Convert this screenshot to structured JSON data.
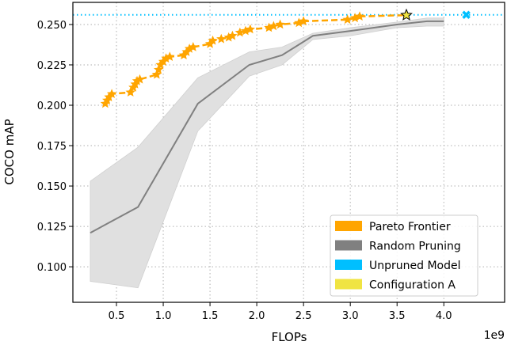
{
  "chart_data": {
    "type": "line",
    "title": "",
    "xlabel": "FLOPs",
    "ylabel": "COCO mAP",
    "x_multiplier_label": "1e9",
    "xlim": [
      0.034,
      4.65
    ],
    "ylim": [
      0.078,
      0.2637
    ],
    "grid": true,
    "legend_placement": "lower-right",
    "x_ticks": [
      0.5,
      1.0,
      1.5,
      2.0,
      2.5,
      3.0,
      3.5,
      4.0
    ],
    "x_tick_labels": [
      "0.5",
      "1.0",
      "1.5",
      "2.0",
      "2.5",
      "3.0",
      "3.5",
      "4.0"
    ],
    "y_ticks": [
      0.1,
      0.125,
      0.15,
      0.175,
      0.2,
      0.225,
      0.25
    ],
    "y_tick_labels": [
      "0.100",
      "0.125",
      "0.150",
      "0.175",
      "0.200",
      "0.225",
      "0.250"
    ],
    "legend": [
      {
        "label": "Pareto Frontier",
        "color": "#ffa500"
      },
      {
        "label": "Random Pruning",
        "color": "#808080"
      },
      {
        "label": "Unpruned Model",
        "color": "#00bfff"
      },
      {
        "label": "Configuration A",
        "color": "#f0e442"
      }
    ],
    "series": [
      {
        "name": "Pareto Frontier",
        "color": "#ffa500",
        "style": "dashed-star-markers",
        "x": [
          0.38,
          0.4,
          0.42,
          0.45,
          0.65,
          0.68,
          0.7,
          0.72,
          0.75,
          0.93,
          0.95,
          0.97,
          1.0,
          1.03,
          1.07,
          1.22,
          1.25,
          1.28,
          1.32,
          1.5,
          1.53,
          1.62,
          1.7,
          1.74,
          1.82,
          1.88,
          1.93,
          2.13,
          2.18,
          2.25,
          2.45,
          2.5,
          2.97,
          3.05,
          3.1,
          3.6
        ],
        "y": [
          0.201,
          0.203,
          0.205,
          0.207,
          0.208,
          0.211,
          0.213,
          0.215,
          0.216,
          0.219,
          0.222,
          0.225,
          0.227,
          0.229,
          0.23,
          0.231,
          0.233,
          0.235,
          0.236,
          0.238,
          0.24,
          0.241,
          0.242,
          0.243,
          0.245,
          0.246,
          0.247,
          0.248,
          0.249,
          0.25,
          0.251,
          0.252,
          0.253,
          0.254,
          0.255,
          0.2558
        ]
      },
      {
        "name": "Random Pruning",
        "color": "#808080",
        "band_color": "#e0e0e0",
        "x": [
          0.22,
          0.73,
          1.37,
          1.92,
          2.27,
          2.6,
          3.0,
          3.5,
          3.82,
          4.0
        ],
        "y": [
          0.121,
          0.137,
          0.201,
          0.225,
          0.231,
          0.243,
          0.246,
          0.25,
          0.252,
          0.252
        ],
        "y_lower": [
          0.091,
          0.087,
          0.184,
          0.218,
          0.225,
          0.2407,
          0.243,
          0.248,
          0.249,
          0.249
        ],
        "y_upper": [
          0.153,
          0.174,
          0.217,
          0.233,
          0.236,
          0.2446,
          0.248,
          0.2515,
          0.254,
          0.254
        ]
      },
      {
        "name": "Unpruned Model",
        "color": "#00bfff",
        "style": "dotted-hline-x-marker",
        "x": [
          4.24
        ],
        "y": [
          0.256
        ]
      },
      {
        "name": "Configuration A",
        "color": "#f0e442",
        "style": "star-marker",
        "x": [
          3.6
        ],
        "y": [
          0.2558
        ]
      }
    ]
  }
}
